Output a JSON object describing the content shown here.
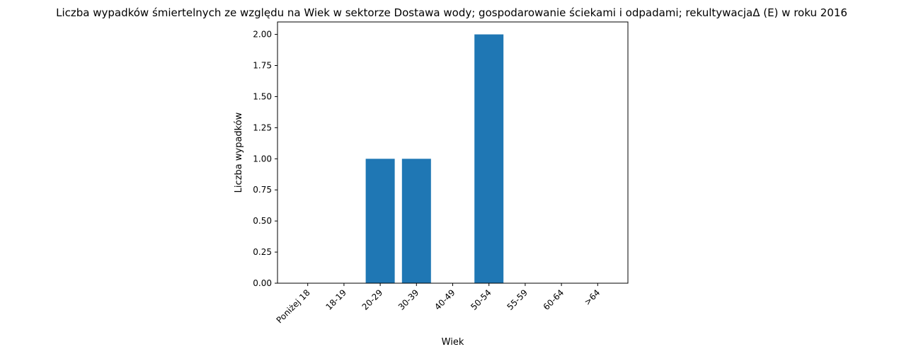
{
  "chart_data": {
    "type": "bar",
    "title": "Liczba wypadków śmiertelnych ze względu na Wiek w sektorze Dostawa wody; gospodarowanie ściekami i odpadami;  rekultywacjaΔ  (E) w roku 2016",
    "xlabel": "Wiek",
    "ylabel": "Liczba wypadków",
    "categories": [
      "Poniżej 18",
      "18-19",
      "20-29",
      "30-39",
      "40-49",
      "50-54",
      "55-59",
      "60-64",
      ">64"
    ],
    "values": [
      0,
      0,
      1,
      1,
      0,
      2,
      0,
      0,
      0
    ],
    "ylim": [
      0,
      2.1
    ],
    "yticks": [
      "0.00",
      "0.25",
      "0.50",
      "0.75",
      "1.00",
      "1.25",
      "1.50",
      "1.75",
      "2.00"
    ],
    "bar_color": "#1f77b4",
    "grid": false,
    "legend": "none"
  }
}
